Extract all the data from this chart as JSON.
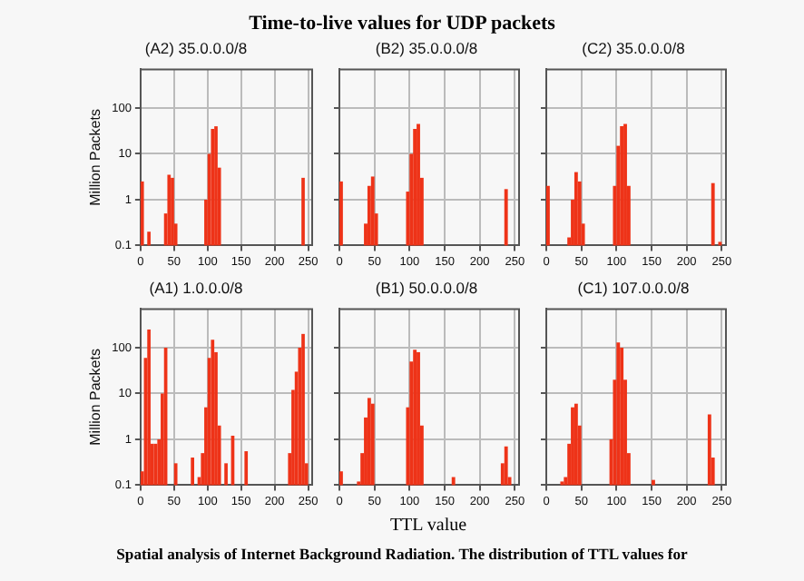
{
  "chart_data": [
    {
      "type": "histogram",
      "title": "(A2) 35.0.0.0/8",
      "ylabel": "Million Packets",
      "annotations": [
        "Time-to-live values for UDP packets"
      ],
      "color": "#ee3318",
      "log": "y",
      "grid": true,
      "xlim": [
        0,
        256
      ],
      "xticks": [
        0,
        50,
        100,
        150,
        200,
        250
      ],
      "ylim": [
        0.1,
        700
      ],
      "yticks": [
        0.1,
        1,
        10,
        100
      ],
      "bins": [
        0,
        5,
        10,
        15,
        20,
        25,
        30,
        35,
        40,
        45,
        50,
        55,
        60,
        65,
        70,
        75,
        80,
        85,
        90,
        95,
        100,
        105,
        110,
        115,
        120,
        125,
        130,
        135,
        140,
        145,
        150,
        155,
        160,
        165,
        170,
        175,
        180,
        185,
        190,
        195,
        200,
        205,
        210,
        215,
        220,
        225,
        230,
        235,
        240,
        245,
        250,
        255
      ],
      "values": [
        2.5,
        null,
        0.2,
        null,
        null,
        null,
        null,
        0.5,
        3.5,
        3,
        0.3,
        null,
        null,
        null,
        null,
        null,
        null,
        null,
        null,
        1,
        10,
        35,
        40,
        5,
        null,
        null,
        null,
        null,
        null,
        null,
        null,
        null,
        null,
        null,
        null,
        null,
        null,
        null,
        null,
        null,
        null,
        null,
        null,
        null,
        null,
        null,
        null,
        null,
        3,
        null,
        null
      ]
    },
    {
      "type": "histogram",
      "title": "(B2) 35.0.0.0/8",
      "color": "#ee3318",
      "log": "y",
      "grid": true,
      "tick_labels": "x",
      "xlim": [
        0,
        256
      ],
      "xticks": [
        0,
        50,
        100,
        150,
        200,
        250
      ],
      "ylim": [
        0.1,
        700
      ],
      "yticks": [
        0.1,
        1,
        10,
        100
      ],
      "bins": [
        0,
        5,
        10,
        15,
        20,
        25,
        30,
        35,
        40,
        45,
        50,
        55,
        60,
        65,
        70,
        75,
        80,
        85,
        90,
        95,
        100,
        105,
        110,
        115,
        120,
        125,
        130,
        135,
        140,
        145,
        150,
        155,
        160,
        165,
        170,
        175,
        180,
        185,
        190,
        195,
        200,
        205,
        210,
        215,
        220,
        225,
        230,
        235,
        240,
        245,
        250,
        255
      ],
      "values": [
        2.5,
        null,
        null,
        null,
        null,
        null,
        null,
        0.3,
        2,
        3.2,
        0.5,
        null,
        null,
        null,
        null,
        null,
        null,
        null,
        null,
        1.5,
        10,
        35,
        45,
        3,
        null,
        null,
        null,
        null,
        null,
        null,
        null,
        null,
        null,
        null,
        null,
        null,
        null,
        null,
        null,
        null,
        null,
        null,
        null,
        null,
        null,
        null,
        null,
        1.7,
        null,
        null,
        null
      ]
    },
    {
      "type": "histogram",
      "title": "(C2) 35.0.0.0/8",
      "color": "#ee3318",
      "log": "y",
      "grid": true,
      "tick_labels": "x",
      "xlim": [
        0,
        256
      ],
      "xticks": [
        0,
        50,
        100,
        150,
        200,
        250
      ],
      "ylim": [
        0.1,
        700
      ],
      "yticks": [
        0.1,
        1,
        10,
        100
      ],
      "bins": [
        0,
        5,
        10,
        15,
        20,
        25,
        30,
        35,
        40,
        45,
        50,
        55,
        60,
        65,
        70,
        75,
        80,
        85,
        90,
        95,
        100,
        105,
        110,
        115,
        120,
        125,
        130,
        135,
        140,
        145,
        150,
        155,
        160,
        165,
        170,
        175,
        180,
        185,
        190,
        195,
        200,
        205,
        210,
        215,
        220,
        225,
        230,
        235,
        240,
        245,
        250,
        255
      ],
      "values": [
        2,
        null,
        null,
        null,
        null,
        null,
        0.15,
        1,
        4,
        2.5,
        0.3,
        null,
        null,
        null,
        null,
        null,
        null,
        null,
        null,
        2,
        15,
        40,
        45,
        2,
        null,
        null,
        null,
        null,
        null,
        null,
        null,
        null,
        null,
        null,
        null,
        null,
        null,
        null,
        null,
        null,
        null,
        null,
        null,
        null,
        null,
        null,
        null,
        2.3,
        null,
        0.12,
        null
      ]
    },
    {
      "type": "histogram",
      "title": "(A1) 1.0.0.0/8",
      "ylabel": "Million Packets",
      "annotations": [
        "Spatial analysis of Internet Background Radiation. The distribution of TTL values for"
      ],
      "color": "#ee3318",
      "log": "y",
      "grid": true,
      "xlim": [
        0,
        256
      ],
      "xticks": [
        0,
        50,
        100,
        150,
        200,
        250
      ],
      "ylim": [
        0.1,
        700
      ],
      "yticks": [
        0.1,
        1,
        10,
        100
      ],
      "bins": [
        0,
        5,
        10,
        15,
        20,
        25,
        30,
        35,
        40,
        45,
        50,
        55,
        60,
        65,
        70,
        75,
        80,
        85,
        90,
        95,
        100,
        105,
        110,
        115,
        120,
        125,
        130,
        135,
        140,
        145,
        150,
        155,
        160,
        165,
        170,
        175,
        180,
        185,
        190,
        195,
        200,
        205,
        210,
        215,
        220,
        225,
        230,
        235,
        240,
        245,
        250,
        255
      ],
      "values": [
        0.2,
        60,
        250,
        0.8,
        0.8,
        1,
        10,
        100,
        null,
        null,
        0.3,
        null,
        null,
        null,
        null,
        0.4,
        null,
        0.15,
        0.5,
        5,
        60,
        150,
        80,
        2,
        null,
        0.3,
        null,
        1.2,
        null,
        null,
        null,
        0.55,
        null,
        null,
        null,
        null,
        null,
        null,
        null,
        null,
        null,
        null,
        null,
        null,
        0.5,
        12,
        30,
        100,
        200,
        0.3,
        null
      ]
    },
    {
      "type": "histogram",
      "title": "(B1) 50.0.0.0/8",
      "xlabel": "TTL value",
      "color": "#ee3318",
      "log": "y",
      "grid": true,
      "tick_labels": "x",
      "xlim": [
        0,
        256
      ],
      "xticks": [
        0,
        50,
        100,
        150,
        200,
        250
      ],
      "ylim": [
        0.1,
        700
      ],
      "yticks": [
        0.1,
        1,
        10,
        100
      ],
      "bins": [
        0,
        5,
        10,
        15,
        20,
        25,
        30,
        35,
        40,
        45,
        50,
        55,
        60,
        65,
        70,
        75,
        80,
        85,
        90,
        95,
        100,
        105,
        110,
        115,
        120,
        125,
        130,
        135,
        140,
        145,
        150,
        155,
        160,
        165,
        170,
        175,
        180,
        185,
        190,
        195,
        200,
        205,
        210,
        215,
        220,
        225,
        230,
        235,
        240,
        245,
        250,
        255
      ],
      "values": [
        0.2,
        null,
        null,
        null,
        null,
        0.12,
        0.5,
        3,
        8,
        6,
        null,
        null,
        null,
        null,
        null,
        null,
        null,
        null,
        null,
        5,
        50,
        90,
        80,
        2,
        null,
        null,
        null,
        null,
        null,
        null,
        null,
        null,
        0.15,
        null,
        null,
        null,
        null,
        null,
        null,
        null,
        null,
        null,
        null,
        null,
        null,
        null,
        0.3,
        0.7,
        0.15,
        null,
        null
      ]
    },
    {
      "type": "histogram",
      "title": "(C1) 107.0.0.0/8",
      "color": "#ee3318",
      "log": "y",
      "grid": true,
      "tick_labels": "x",
      "xlim": [
        0,
        256
      ],
      "xticks": [
        0,
        50,
        100,
        150,
        200,
        250
      ],
      "ylim": [
        0.1,
        700
      ],
      "yticks": [
        0.1,
        1,
        10,
        100
      ],
      "bins": [
        0,
        5,
        10,
        15,
        20,
        25,
        30,
        35,
        40,
        45,
        50,
        55,
        60,
        65,
        70,
        75,
        80,
        85,
        90,
        95,
        100,
        105,
        110,
        115,
        120,
        125,
        130,
        135,
        140,
        145,
        150,
        155,
        160,
        165,
        170,
        175,
        180,
        185,
        190,
        195,
        200,
        205,
        210,
        215,
        220,
        225,
        230,
        235,
        240,
        245,
        250,
        255
      ],
      "values": [
        null,
        null,
        null,
        null,
        0.12,
        0.15,
        0.8,
        5,
        6,
        2,
        null,
        null,
        null,
        null,
        null,
        null,
        null,
        null,
        1,
        20,
        130,
        100,
        20,
        0.5,
        null,
        null,
        null,
        null,
        null,
        null,
        0.13,
        null,
        null,
        null,
        null,
        null,
        null,
        null,
        null,
        null,
        null,
        null,
        null,
        null,
        null,
        null,
        3.5,
        0.4,
        null,
        null,
        null
      ]
    }
  ]
}
